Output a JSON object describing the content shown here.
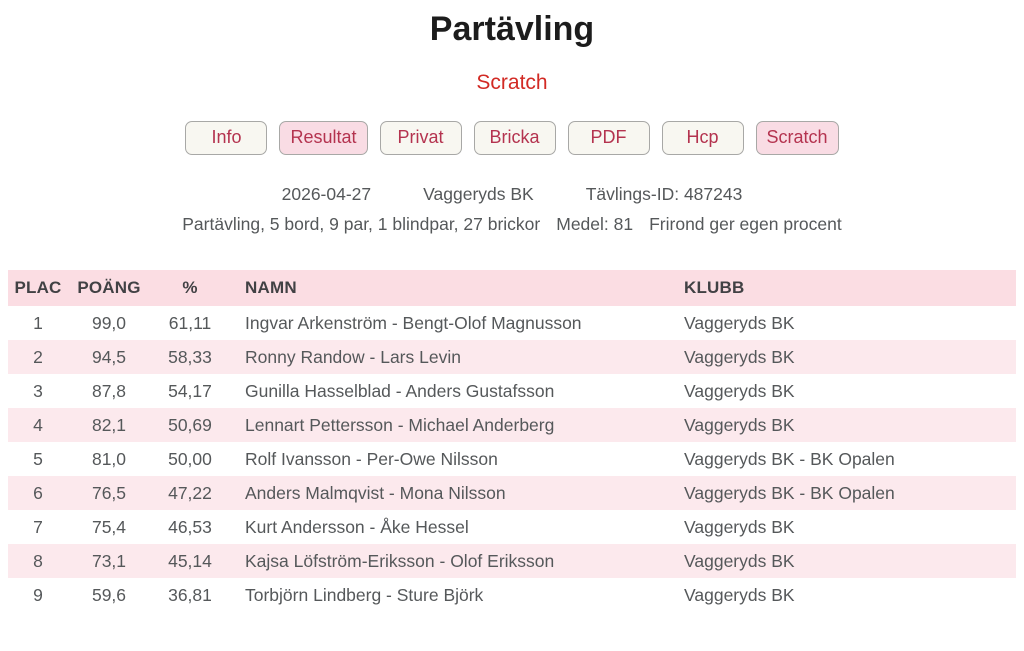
{
  "page": {
    "title": "Partävling",
    "subtitle": "Scratch"
  },
  "nav": {
    "buttons": [
      {
        "label": "Info",
        "active": false
      },
      {
        "label": "Resultat",
        "active": true
      },
      {
        "label": "Privat",
        "active": false
      },
      {
        "label": "Bricka",
        "active": false
      },
      {
        "label": "PDF",
        "active": false
      },
      {
        "label": "Hcp",
        "active": false
      },
      {
        "label": "Scratch",
        "active": true
      }
    ]
  },
  "info": {
    "date": "2026-04-27",
    "club": "Vaggeryds BK",
    "tournament_id": "Tävlings-ID: 487243",
    "details": "Partävling, 5 bord, 9 par, 1 blindpar, 27 brickor",
    "average": "Medel: 81",
    "note": "Frirond ger egen procent"
  },
  "table": {
    "headers": {
      "plac": "PLAC",
      "poang": "POÄNG",
      "pct": "%",
      "namn": "NAMN",
      "klubb": "KLUBB"
    },
    "rows": [
      {
        "plac": "1",
        "poang": "99,0",
        "pct": "61,11",
        "namn": "Ingvar Arkenström - Bengt-Olof Magnusson",
        "klubb": "Vaggeryds BK"
      },
      {
        "plac": "2",
        "poang": "94,5",
        "pct": "58,33",
        "namn": "Ronny Randow - Lars Levin",
        "klubb": "Vaggeryds BK"
      },
      {
        "plac": "3",
        "poang": "87,8",
        "pct": "54,17",
        "namn": "Gunilla Hasselblad - Anders Gustafsson",
        "klubb": "Vaggeryds BK"
      },
      {
        "plac": "4",
        "poang": "82,1",
        "pct": "50,69",
        "namn": "Lennart Pettersson - Michael Anderberg",
        "klubb": "Vaggeryds BK"
      },
      {
        "plac": "5",
        "poang": "81,0",
        "pct": "50,00",
        "namn": "Rolf Ivansson - Per-Owe Nilsson",
        "klubb": "Vaggeryds BK - BK Opalen"
      },
      {
        "plac": "6",
        "poang": "76,5",
        "pct": "47,22",
        "namn": "Anders Malmqvist - Mona Nilsson",
        "klubb": "Vaggeryds BK - BK Opalen"
      },
      {
        "plac": "7",
        "poang": "75,4",
        "pct": "46,53",
        "namn": "Kurt Andersson - Åke Hessel",
        "klubb": "Vaggeryds BK"
      },
      {
        "plac": "8",
        "poang": "73,1",
        "pct": "45,14",
        "namn": "Kajsa Löfström-Eriksson - Olof Eriksson",
        "klubb": "Vaggeryds BK"
      },
      {
        "plac": "9",
        "poang": "59,6",
        "pct": "36,81",
        "namn": "Torbjörn Lindberg - Sture Björk",
        "klubb": "Vaggeryds BK"
      }
    ]
  },
  "colors": {
    "subtitle_red": "#d22a24",
    "button_text_crimson": "#b4334f",
    "button_bg": "#f8f7f1",
    "button_active_bg": "#f9dce4",
    "table_header_pink": "#fbdde3",
    "table_stripe_pink": "#fce9ed",
    "body_text_gray": "#55585a"
  }
}
